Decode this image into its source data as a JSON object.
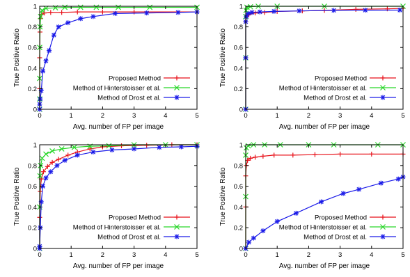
{
  "figure": {
    "legend_placement": "bottom-right",
    "colors": {
      "proposed": "#e8121a",
      "hinterstoisser": "#28d628",
      "drost": "#1a1ae8",
      "axes": "#000000"
    }
  },
  "chart_data": [
    {
      "type": "line",
      "xlabel": "Avg. number of FP per image",
      "ylabel": "True Positive Ratio",
      "xlim": [
        0,
        5
      ],
      "ylim": [
        0,
        1
      ],
      "xticks": [
        "0",
        "1",
        "2",
        "3",
        "4",
        "5"
      ],
      "yticks": [
        "0",
        "0.2",
        "0.4",
        "0.6",
        "0.8",
        "1"
      ],
      "legend": "bottom-right",
      "grid": false,
      "series": [
        {
          "name": "Proposed Method",
          "marker": "plus",
          "points": [
            [
              0,
              0
            ],
            [
              0,
              0.2
            ],
            [
              0,
              0.5
            ],
            [
              0.01,
              0.75
            ],
            [
              0.02,
              0.88
            ],
            [
              0.06,
              0.92
            ],
            [
              0.15,
              0.935
            ],
            [
              0.35,
              0.94
            ],
            [
              0.7,
              0.94
            ],
            [
              1.2,
              0.945
            ],
            [
              2.0,
              0.945
            ],
            [
              3.0,
              0.945
            ],
            [
              5.0,
              0.945
            ]
          ]
        },
        {
          "name": "Method of Hinterstoisser et al.",
          "marker": "cross",
          "points": [
            [
              0,
              0
            ],
            [
              0,
              0.1
            ],
            [
              0,
              0.3
            ],
            [
              0,
              0.6
            ],
            [
              0.01,
              0.8
            ],
            [
              0.03,
              0.9
            ],
            [
              0.08,
              0.96
            ],
            [
              0.2,
              0.98
            ],
            [
              0.5,
              0.985
            ],
            [
              0.8,
              0.99
            ],
            [
              1.3,
              0.99
            ],
            [
              1.8,
              0.99
            ],
            [
              2.5,
              0.99
            ],
            [
              3.5,
              0.99
            ],
            [
              5.0,
              0.99
            ]
          ]
        },
        {
          "name": "Method of Drost et al.",
          "marker": "star",
          "points": [
            [
              0,
              0
            ],
            [
              0,
              0.05
            ],
            [
              0.02,
              0.1
            ],
            [
              0.05,
              0.18
            ],
            [
              0.1,
              0.37
            ],
            [
              0.2,
              0.47
            ],
            [
              0.3,
              0.57
            ],
            [
              0.45,
              0.72
            ],
            [
              0.6,
              0.8
            ],
            [
              0.9,
              0.84
            ],
            [
              1.3,
              0.88
            ],
            [
              1.7,
              0.9
            ],
            [
              2.4,
              0.93
            ],
            [
              3.4,
              0.935
            ],
            [
              4.4,
              0.94
            ],
            [
              5.0,
              0.945
            ]
          ]
        }
      ]
    },
    {
      "type": "line",
      "xlabel": "Avg. number of FP per image",
      "ylabel": "True Positive Ratio",
      "xlim": [
        0,
        5
      ],
      "ylim": [
        0,
        1
      ],
      "xticks": [
        "0",
        "1",
        "2",
        "3",
        "4",
        "5"
      ],
      "yticks": [
        "0",
        "0.2",
        "0.4",
        "0.6",
        "0.8",
        "1"
      ],
      "legend": "bottom-right",
      "grid": false,
      "series": [
        {
          "name": "Proposed Method",
          "marker": "plus",
          "points": [
            [
              0,
              0
            ],
            [
              0,
              0.5
            ],
            [
              0,
              0.85
            ],
            [
              0.03,
              0.9
            ],
            [
              0.1,
              0.92
            ],
            [
              0.3,
              0.935
            ],
            [
              0.6,
              0.94
            ],
            [
              1.0,
              0.95
            ],
            [
              1.8,
              0.955
            ],
            [
              2.5,
              0.96
            ],
            [
              3.5,
              0.97
            ],
            [
              4.5,
              0.975
            ],
            [
              5.0,
              0.98
            ]
          ]
        },
        {
          "name": "Method of Hinterstoisser et al.",
          "marker": "cross",
          "points": [
            [
              0,
              0
            ],
            [
              0,
              0.5
            ],
            [
              0,
              0.9
            ],
            [
              0.01,
              0.96
            ],
            [
              0.04,
              0.99
            ],
            [
              0.15,
              0.995
            ],
            [
              0.4,
              1.0
            ],
            [
              1.0,
              1.0
            ],
            [
              2.5,
              1.0
            ],
            [
              5.0,
              1.0
            ]
          ]
        },
        {
          "name": "Method of Drost et al.",
          "marker": "star",
          "points": [
            [
              0,
              0
            ],
            [
              0,
              0.5
            ],
            [
              0,
              0.85
            ],
            [
              0.02,
              0.9
            ],
            [
              0.08,
              0.93
            ],
            [
              0.2,
              0.94
            ],
            [
              0.45,
              0.945
            ],
            [
              0.9,
              0.95
            ],
            [
              1.7,
              0.955
            ],
            [
              2.8,
              0.96
            ],
            [
              3.8,
              0.962
            ],
            [
              4.9,
              0.963
            ]
          ]
        }
      ]
    },
    {
      "type": "line",
      "xlabel": "Avg. number of FP per image",
      "ylabel": "True Positive Ratio",
      "xlim": [
        0,
        5
      ],
      "ylim": [
        0,
        1
      ],
      "xticks": [
        "0",
        "1",
        "2",
        "3",
        "4",
        "5"
      ],
      "yticks": [
        "0",
        "0.2",
        "0.4",
        "0.6",
        "0.8",
        "1"
      ],
      "legend": "bottom-right",
      "grid": false,
      "series": [
        {
          "name": "Proposed Method",
          "marker": "plus",
          "points": [
            [
              0,
              0
            ],
            [
              0,
              0.3
            ],
            [
              0.02,
              0.55
            ],
            [
              0.05,
              0.67
            ],
            [
              0.12,
              0.74
            ],
            [
              0.25,
              0.79
            ],
            [
              0.4,
              0.83
            ],
            [
              0.6,
              0.86
            ],
            [
              0.9,
              0.9
            ],
            [
              1.2,
              0.93
            ],
            [
              1.6,
              0.96
            ],
            [
              2.0,
              0.98
            ],
            [
              2.6,
              0.99
            ],
            [
              3.4,
              0.995
            ],
            [
              4.2,
              1.0
            ],
            [
              5.0,
              1.0
            ]
          ]
        },
        {
          "name": "Method of Hinterstoisser et al.",
          "marker": "cross",
          "points": [
            [
              0,
              0
            ],
            [
              0,
              0.4
            ],
            [
              0.01,
              0.7
            ],
            [
              0.03,
              0.8
            ],
            [
              0.08,
              0.87
            ],
            [
              0.2,
              0.91
            ],
            [
              0.4,
              0.94
            ],
            [
              0.7,
              0.96
            ],
            [
              1.1,
              0.975
            ],
            [
              1.6,
              0.985
            ],
            [
              2.2,
              0.99
            ],
            [
              3.0,
              1.0
            ],
            [
              4.0,
              1.0
            ],
            [
              5.0,
              1.0
            ]
          ]
        },
        {
          "name": "Method of Drost et al.",
          "marker": "star",
          "points": [
            [
              0,
              0
            ],
            [
              0,
              0.02
            ],
            [
              0.02,
              0.2
            ],
            [
              0.05,
              0.45
            ],
            [
              0.1,
              0.6
            ],
            [
              0.2,
              0.68
            ],
            [
              0.35,
              0.74
            ],
            [
              0.55,
              0.8
            ],
            [
              0.8,
              0.85
            ],
            [
              1.2,
              0.9
            ],
            [
              1.7,
              0.93
            ],
            [
              2.3,
              0.95
            ],
            [
              3.0,
              0.96
            ],
            [
              3.8,
              0.975
            ],
            [
              4.5,
              0.98
            ],
            [
              5.0,
              0.985
            ]
          ]
        }
      ]
    },
    {
      "type": "line",
      "xlabel": "Avg. number of FP per image",
      "ylabel": "True Positive Ratio",
      "xlim": [
        0,
        5
      ],
      "ylim": [
        0,
        1
      ],
      "xticks": [
        "0",
        "1",
        "2",
        "3",
        "4",
        "5"
      ],
      "yticks": [
        "0",
        "0.2",
        "0.4",
        "0.6",
        "0.8",
        "1"
      ],
      "legend": "bottom-right",
      "grid": false,
      "series": [
        {
          "name": "Proposed Method",
          "marker": "plus",
          "points": [
            [
              0,
              0
            ],
            [
              0,
              0.4
            ],
            [
              0,
              0.7
            ],
            [
              0.02,
              0.8
            ],
            [
              0.06,
              0.85
            ],
            [
              0.15,
              0.87
            ],
            [
              0.3,
              0.88
            ],
            [
              0.55,
              0.89
            ],
            [
              0.9,
              0.9
            ],
            [
              1.5,
              0.9
            ],
            [
              2.2,
              0.905
            ],
            [
              3.0,
              0.91
            ],
            [
              4.0,
              0.91
            ],
            [
              5.0,
              0.91
            ]
          ]
        },
        {
          "name": "Method of Hinterstoisser et al.",
          "marker": "cross",
          "points": [
            [
              0,
              0
            ],
            [
              0,
              0.5
            ],
            [
              0,
              0.9
            ],
            [
              0.02,
              0.97
            ],
            [
              0.08,
              0.99
            ],
            [
              0.25,
              1.0
            ],
            [
              0.6,
              1.0
            ],
            [
              1.1,
              1.0
            ],
            [
              2.0,
              1.0
            ],
            [
              2.8,
              1.0
            ],
            [
              4.2,
              1.0
            ],
            [
              5.0,
              1.0
            ]
          ]
        },
        {
          "name": "Method of Drost et al.",
          "marker": "star",
          "points": [
            [
              0,
              0
            ],
            [
              0.1,
              0.06
            ],
            [
              0.25,
              0.1
            ],
            [
              0.55,
              0.17
            ],
            [
              1.0,
              0.26
            ],
            [
              1.6,
              0.34
            ],
            [
              2.4,
              0.45
            ],
            [
              3.1,
              0.53
            ],
            [
              3.6,
              0.57
            ],
            [
              4.3,
              0.63
            ],
            [
              4.85,
              0.67
            ],
            [
              5.0,
              0.69
            ]
          ]
        }
      ]
    }
  ]
}
